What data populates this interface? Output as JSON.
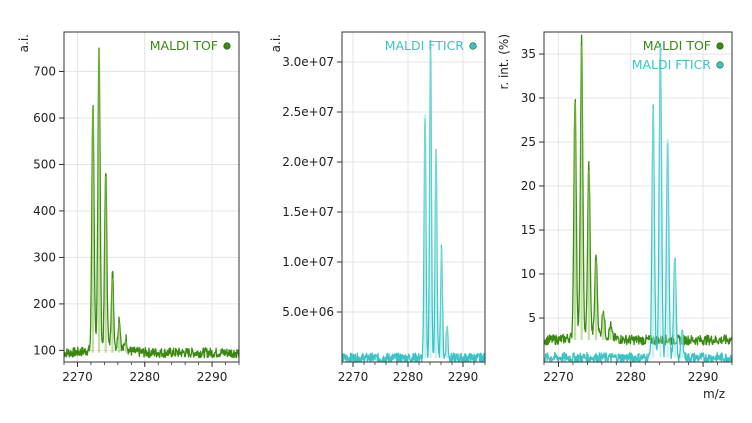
{
  "colors": {
    "tof": "#3a8a12",
    "tof_light": "#8cc850",
    "fticr": "#3cc4c4",
    "fticr_light": "#9ee6e6",
    "grid": "#e4e4e4",
    "frame": "#333333"
  },
  "chart_data": [
    {
      "type": "line",
      "ylabel": "a.i.",
      "xlabel": "",
      "xlim": [
        2268,
        2294
      ],
      "ylim": [
        75,
        785
      ],
      "xticks": [
        "2270",
        "2280",
        "2290"
      ],
      "yticks": [
        "100",
        "200",
        "300",
        "400",
        "500",
        "600",
        "700"
      ],
      "legend_position": "top-right",
      "series": [
        {
          "name": "MALDI TOF",
          "color": "tof",
          "noise_floor": 95,
          "peaks": [
            {
              "x": 2272.3,
              "y": 625
            },
            {
              "x": 2273.2,
              "y": 745
            },
            {
              "x": 2274.2,
              "y": 475
            },
            {
              "x": 2275.2,
              "y": 255
            },
            {
              "x": 2276.2,
              "y": 160
            },
            {
              "x": 2277.2,
              "y": 120
            }
          ]
        }
      ]
    },
    {
      "type": "line",
      "ylabel": "a.i.",
      "xlabel": "",
      "xlim": [
        2268,
        2294
      ],
      "ylim": [
        0,
        33000000
      ],
      "xticks": [
        "2270",
        "2280",
        "2290"
      ],
      "yticks": [
        "5.0e+06",
        "1.0e+07",
        "1.5e+07",
        "2.0e+07",
        "2.5e+07",
        "3.0e+07"
      ],
      "legend_position": "top-right",
      "series": [
        {
          "name": "MALDI FTICR",
          "color": "fticr",
          "noise_floor": 400000,
          "peaks": [
            {
              "x": 2283.1,
              "y": 24800000
            },
            {
              "x": 2284.1,
              "y": 31800000
            },
            {
              "x": 2285.1,
              "y": 21200000
            },
            {
              "x": 2286.1,
              "y": 11500000
            },
            {
              "x": 2287.1,
              "y": 3600000
            }
          ]
        }
      ]
    },
    {
      "type": "line",
      "ylabel": "r. int. (%)",
      "xlabel": "m/z",
      "xlim": [
        2268,
        2294
      ],
      "ylim": [
        0,
        37.5
      ],
      "xticks": [
        "2270",
        "2280",
        "2290"
      ],
      "yticks": [
        "5",
        "10",
        "15",
        "20",
        "25",
        "30",
        "35"
      ],
      "legend_position": "top-right",
      "series": [
        {
          "name": "MALDI TOF",
          "color": "tof",
          "noise_floor": 2.5,
          "peaks": [
            {
              "x": 2272.3,
              "y": 29.5
            },
            {
              "x": 2273.2,
              "y": 36.0
            },
            {
              "x": 2274.2,
              "y": 21.8
            },
            {
              "x": 2275.2,
              "y": 11.5
            },
            {
              "x": 2276.2,
              "y": 5.5
            },
            {
              "x": 2277.2,
              "y": 3.8
            }
          ]
        },
        {
          "name": "MALDI FTICR",
          "color": "fticr",
          "noise_floor": 0.5,
          "peaks": [
            {
              "x": 2283.1,
              "y": 28.8
            },
            {
              "x": 2284.1,
              "y": 35.8
            },
            {
              "x": 2285.1,
              "y": 25.3
            },
            {
              "x": 2286.1,
              "y": 11.8
            },
            {
              "x": 2287.1,
              "y": 3.5
            }
          ]
        }
      ]
    }
  ]
}
